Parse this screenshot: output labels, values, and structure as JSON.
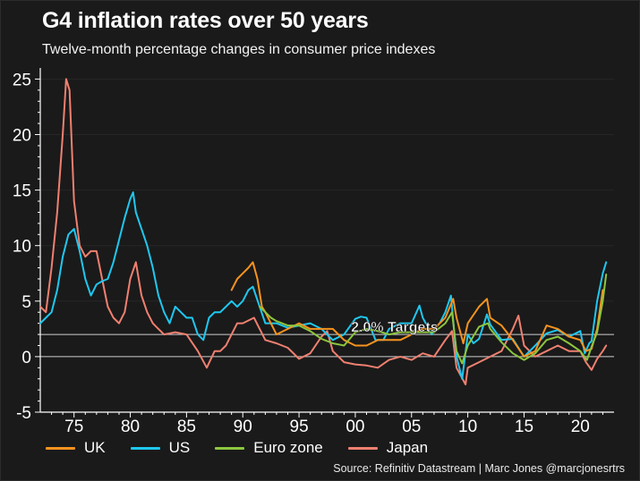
{
  "title": "G4 inflation rates over 50 years",
  "subtitle": "Twelve-month percentage changes in consumer price indexes",
  "source": "Source: Refinitiv Datastream |  Marc Jones @marcjonesrtrs",
  "colors": {
    "UK": "#f7931e",
    "US": "#1ec8f0",
    "Euro zone": "#8cc63f",
    "Japan": "#f08070",
    "axis": "#ffffff",
    "target_line": "#cfcfcf"
  },
  "chart_data": {
    "type": "line",
    "title": "G4 inflation rates over 50 years",
    "subtitle": "Twelve-month percentage changes in consumer price indexes",
    "xlabel": "",
    "ylabel": "",
    "xlim": [
      1972,
      2023
    ],
    "ylim": [
      -5,
      26
    ],
    "y_ticks": [
      -5,
      0,
      5,
      10,
      15,
      20,
      25
    ],
    "x_ticks": [
      {
        "year": 1975,
        "label": "75"
      },
      {
        "year": 1980,
        "label": "80"
      },
      {
        "year": 1985,
        "label": "85"
      },
      {
        "year": 1990,
        "label": "90"
      },
      {
        "year": 1995,
        "label": "95"
      },
      {
        "year": 2000,
        "label": "00"
      },
      {
        "year": 2005,
        "label": "05"
      },
      {
        "year": 2010,
        "label": "10"
      },
      {
        "year": 2015,
        "label": "15"
      },
      {
        "year": 2020,
        "label": "20"
      }
    ],
    "reference_lines": [
      {
        "y": 2.0,
        "label": "2.0% Targets"
      },
      {
        "y": 0,
        "label": ""
      }
    ],
    "annotation": "2.0% Targets",
    "legend": [
      "UK",
      "US",
      "Euro zone",
      "Japan"
    ],
    "series": [
      {
        "name": "US",
        "x": [
          1972.0,
          1972.5,
          1973.0,
          1973.5,
          1974.0,
          1974.5,
          1975.0,
          1975.5,
          1976.0,
          1976.5,
          1977.0,
          1977.5,
          1978.0,
          1978.5,
          1979.0,
          1979.5,
          1980.0,
          1980.25,
          1980.5,
          1981.0,
          1981.5,
          1982.0,
          1982.5,
          1983.0,
          1983.5,
          1984.0,
          1984.5,
          1985.0,
          1985.5,
          1986.0,
          1986.5,
          1987.0,
          1987.5,
          1988.0,
          1988.5,
          1989.0,
          1989.5,
          1990.0,
          1990.5,
          1990.9,
          1991.5,
          1992.0,
          1992.5,
          1993.0,
          1994.0,
          1995.0,
          1996.0,
          1997.0,
          1998.0,
          1999.0,
          2000.0,
          2000.5,
          2001.0,
          2001.8,
          2002.5,
          2003.0,
          2004.0,
          2005.0,
          2005.7,
          2006.0,
          2006.8,
          2007.0,
          2007.5,
          2008.0,
          2008.5,
          2009.0,
          2009.5,
          2010.0,
          2010.5,
          2011.0,
          2011.7,
          2012.0,
          2013.0,
          2014.0,
          2015.0,
          2016.0,
          2017.0,
          2018.0,
          2019.0,
          2020.0,
          2020.4,
          2020.8,
          2021.0,
          2021.5,
          2022.0,
          2022.3
        ],
        "values": [
          3.0,
          3.5,
          4.0,
          6.0,
          9.0,
          11.0,
          11.5,
          9.5,
          7.0,
          5.5,
          6.5,
          6.8,
          7.0,
          8.5,
          10.5,
          12.5,
          14.2,
          14.8,
          13.0,
          11.5,
          10.0,
          8.0,
          5.5,
          4.0,
          3.0,
          4.5,
          4.0,
          3.5,
          3.5,
          2.0,
          1.5,
          3.5,
          4.0,
          4.0,
          4.5,
          5.0,
          4.5,
          5.0,
          6.0,
          6.3,
          4.5,
          3.0,
          3.0,
          3.0,
          2.6,
          2.8,
          3.0,
          2.5,
          1.5,
          2.0,
          3.4,
          3.6,
          3.5,
          1.5,
          1.5,
          2.5,
          3.0,
          3.0,
          4.6,
          3.5,
          2.0,
          2.5,
          3.0,
          4.0,
          5.5,
          0.0,
          -2.0,
          2.0,
          1.2,
          1.6,
          3.8,
          2.9,
          1.5,
          1.6,
          0.0,
          1.0,
          2.1,
          2.4,
          1.8,
          2.3,
          0.3,
          1.2,
          1.4,
          5.0,
          7.5,
          8.5
        ]
      },
      {
        "name": "UK",
        "x": [
          1989.0,
          1989.5,
          1990.0,
          1990.5,
          1990.9,
          1991.3,
          1991.7,
          1992.0,
          1993.0,
          1994.0,
          1995.0,
          1996.0,
          1997.0,
          1998.0,
          1999.0,
          2000.0,
          2001.0,
          2002.0,
          2003.0,
          2004.0,
          2005.0,
          2006.0,
          2007.0,
          2008.0,
          2008.7,
          2009.0,
          2009.6,
          2010.0,
          2011.0,
          2011.7,
          2012.0,
          2013.0,
          2014.0,
          2015.0,
          2016.0,
          2017.0,
          2018.0,
          2019.0,
          2020.0,
          2020.5,
          2021.0,
          2021.5,
          2022.0
        ],
        "values": [
          6.0,
          7.0,
          7.5,
          8.0,
          8.5,
          7.0,
          4.5,
          4.0,
          2.0,
          2.5,
          3.0,
          2.5,
          2.5,
          2.5,
          1.5,
          1.0,
          1.0,
          1.5,
          1.5,
          1.5,
          2.0,
          2.5,
          2.5,
          3.5,
          5.2,
          3.5,
          1.2,
          3.0,
          4.5,
          5.2,
          3.5,
          2.8,
          1.5,
          0.0,
          0.5,
          2.8,
          2.5,
          1.8,
          1.5,
          0.5,
          0.7,
          2.5,
          6.0
        ]
      },
      {
        "name": "Euro zone",
        "x": [
          1991.5,
          1992.0,
          1992.5,
          1993.0,
          1994.0,
          1995.0,
          1996.0,
          1997.0,
          1998.0,
          1999.0,
          2000.0,
          2001.0,
          2002.0,
          2003.0,
          2004.0,
          2005.0,
          2006.0,
          2007.0,
          2008.0,
          2008.6,
          2009.0,
          2009.5,
          2010.0,
          2011.0,
          2011.8,
          2012.0,
          2013.0,
          2014.0,
          2015.0,
          2016.0,
          2017.0,
          2018.0,
          2019.0,
          2020.0,
          2020.6,
          2021.0,
          2021.5,
          2022.0,
          2022.3
        ],
        "values": [
          4.5,
          4.0,
          3.5,
          3.2,
          2.8,
          2.8,
          2.3,
          1.6,
          1.2,
          1.0,
          2.2,
          2.5,
          2.3,
          2.0,
          2.2,
          2.2,
          2.2,
          2.2,
          3.0,
          4.0,
          0.5,
          -0.6,
          1.0,
          2.7,
          3.0,
          2.5,
          1.3,
          0.3,
          -0.3,
          0.3,
          1.5,
          1.8,
          1.2,
          0.5,
          -0.3,
          0.9,
          2.2,
          5.0,
          7.4
        ]
      },
      {
        "name": "Japan",
        "x": [
          1972.0,
          1972.5,
          1973.0,
          1973.5,
          1974.0,
          1974.3,
          1974.6,
          1975.0,
          1975.5,
          1976.0,
          1976.5,
          1977.0,
          1977.5,
          1978.0,
          1978.5,
          1979.0,
          1979.5,
          1980.0,
          1980.5,
          1981.0,
          1981.5,
          1982.0,
          1982.5,
          1983.0,
          1984.0,
          1985.0,
          1986.0,
          1986.8,
          1987.5,
          1988.0,
          1988.5,
          1989.0,
          1989.5,
          1990.0,
          1991.0,
          1991.5,
          1992.0,
          1993.0,
          1994.0,
          1995.0,
          1996.0,
          1997.0,
          1997.5,
          1998.0,
          1999.0,
          2000.0,
          2001.0,
          2002.0,
          2003.0,
          2004.0,
          2005.0,
          2006.0,
          2007.0,
          2008.0,
          2008.6,
          2009.0,
          2009.8,
          2010.0,
          2011.0,
          2012.0,
          2013.0,
          2014.0,
          2014.5,
          2015.0,
          2016.0,
          2017.0,
          2018.0,
          2019.0,
          2020.0,
          2020.5,
          2021.0,
          2021.5,
          2022.0,
          2022.3
        ],
        "values": [
          4.5,
          4.0,
          8.0,
          13.0,
          20.0,
          25.0,
          24.0,
          14.0,
          10.0,
          9.0,
          9.5,
          9.5,
          7.0,
          4.5,
          3.5,
          3.0,
          4.0,
          7.0,
          8.5,
          5.5,
          4.0,
          3.0,
          2.5,
          2.0,
          2.2,
          2.0,
          0.5,
          -1.0,
          0.5,
          0.5,
          1.0,
          2.0,
          3.0,
          3.0,
          3.5,
          2.5,
          1.5,
          1.2,
          0.8,
          -0.2,
          0.3,
          1.8,
          2.3,
          0.5,
          -0.5,
          -0.7,
          -0.8,
          -1.0,
          -0.3,
          0.0,
          -0.3,
          0.3,
          0.0,
          1.5,
          2.3,
          -1.0,
          -2.5,
          -1.0,
          -0.5,
          0.0,
          0.5,
          2.5,
          3.7,
          1.0,
          0.0,
          0.5,
          1.0,
          0.5,
          0.5,
          -0.5,
          -1.2,
          -0.2,
          0.5,
          1.0
        ]
      }
    ]
  }
}
